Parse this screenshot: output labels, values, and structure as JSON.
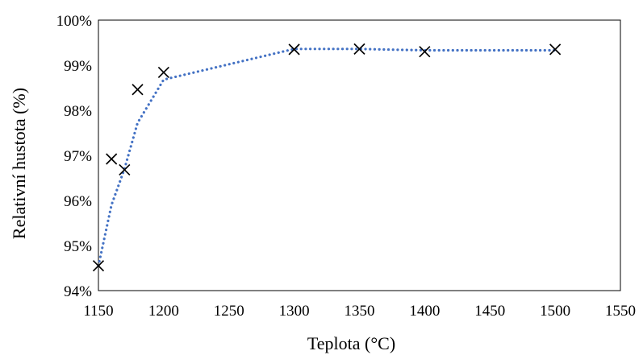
{
  "chart_data": {
    "type": "scatter",
    "title": "",
    "xlabel": "Teplota (°C)",
    "ylabel": "Relativní hustota (%)",
    "xlim": [
      1150,
      1550
    ],
    "ylim": [
      94,
      100
    ],
    "xticks": [
      1150,
      1200,
      1250,
      1300,
      1350,
      1400,
      1450,
      1500,
      1550
    ],
    "xtick_labels": [
      "1150",
      "1200",
      "1250",
      "1300",
      "1350",
      "1400",
      "1450",
      "1500",
      "1550"
    ],
    "yticks": [
      94,
      95,
      96,
      97,
      98,
      99,
      100
    ],
    "ytick_labels": [
      "94%",
      "95%",
      "96%",
      "97%",
      "98%",
      "99%",
      "100%"
    ],
    "grid": false,
    "legend": "none",
    "series": [
      {
        "marker": "x",
        "color": "#000000",
        "x": [
          1150,
          1160,
          1170,
          1180,
          1200,
          1300,
          1350,
          1400,
          1500
        ],
        "y": [
          94.55,
          96.92,
          96.68,
          98.46,
          98.84,
          99.35,
          99.36,
          99.3,
          99.35
        ]
      },
      {
        "style": "dotted-line",
        "color": "#4472C4",
        "x": [
          1150,
          1160,
          1170,
          1180,
          1200,
          1300,
          1350,
          1400,
          1500
        ],
        "y": [
          94.55,
          95.9,
          96.7,
          97.72,
          98.68,
          99.36,
          99.36,
          99.33,
          99.33
        ]
      }
    ]
  }
}
